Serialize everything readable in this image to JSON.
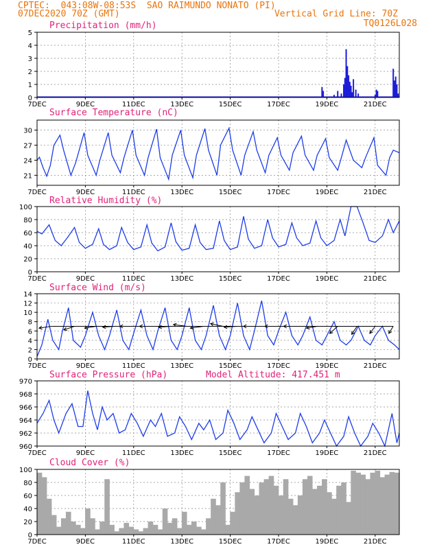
{
  "header": {
    "line1": "CPTEC:  043:08W-08:53S  SAO RAIMUNDO NONATO (PI)",
    "line2": "07DEC2020 70Z (GMT)",
    "grid_note": "Vertical Grid Line: 70Z",
    "code": "TQ0126L028"
  },
  "colors": {
    "header": "#e8740c",
    "title": "#e0217a",
    "line": "#1c3ce8",
    "bar": "#1c1cd8",
    "cloud": "#a9a9a9"
  },
  "chart_data": [
    {
      "type": "bar",
      "title": "Precipitation (mm/h)",
      "x_labels": [
        "7DEC",
        "9DEC",
        "11DEC",
        "13DEC",
        "15DEC",
        "17DEC",
        "19DEC",
        "21DEC"
      ],
      "xlim": [
        7,
        22
      ],
      "ylim": [
        0,
        5
      ],
      "yticks": [
        0,
        1,
        2,
        3,
        4,
        5
      ],
      "x": [
        18.8,
        18.85,
        19.3,
        19.45,
        19.6,
        19.7,
        19.75,
        19.8,
        19.85,
        19.9,
        19.95,
        20.0,
        20.05,
        20.1,
        20.2,
        20.3,
        21.0,
        21.05,
        21.1,
        21.75,
        21.8,
        21.85,
        21.9,
        21.95
      ],
      "values": [
        0.8,
        0.5,
        0.2,
        0.5,
        0.3,
        1.0,
        1.5,
        3.7,
        2.4,
        1.7,
        1.2,
        0.9,
        0.4,
        1.4,
        0.6,
        0.3,
        0.2,
        0.6,
        0.5,
        2.2,
        1.3,
        1.6,
        1.0,
        0.3
      ],
      "grid": true
    },
    {
      "type": "line",
      "title": "Surface Temperature (nC)",
      "x_labels": [
        "7DEC",
        "9DEC",
        "11DEC",
        "13DEC",
        "15DEC",
        "17DEC",
        "19DEC",
        "21DEC"
      ],
      "xlim": [
        7,
        22
      ],
      "ylim": [
        19,
        32
      ],
      "yticks": [
        21,
        24,
        27,
        30
      ],
      "series": [
        {
          "x": [
            7.0,
            7.1,
            7.25,
            7.4,
            7.55,
            7.7,
            7.95,
            8.1,
            8.4,
            8.6,
            8.95,
            9.1,
            9.45,
            9.6,
            9.95,
            10.1,
            10.45,
            10.6,
            10.95,
            11.1,
            11.45,
            11.6,
            11.95,
            12.1,
            12.45,
            12.6,
            12.95,
            13.1,
            13.45,
            13.6,
            13.95,
            14.1,
            14.45,
            14.6,
            14.95,
            15.1,
            15.45,
            15.6,
            15.95,
            16.1,
            16.45,
            16.6,
            16.95,
            17.1,
            17.45,
            17.6,
            17.95,
            18.1,
            18.45,
            18.6,
            18.95,
            19.1,
            19.45,
            19.6,
            19.8,
            20.1,
            20.45,
            20.6,
            20.95,
            21.1,
            21.45,
            21.6,
            21.75,
            22.0
          ],
          "values": [
            24.0,
            24.6,
            22.5,
            20.8,
            23.0,
            27.0,
            29.0,
            26.0,
            21.0,
            23.5,
            29.5,
            25.0,
            21.0,
            24.0,
            29.5,
            25.0,
            21.5,
            24.5,
            30.0,
            25.0,
            21.0,
            24.5,
            30.2,
            24.5,
            20.2,
            25.0,
            30.0,
            25.0,
            20.5,
            25.0,
            30.3,
            26.0,
            21.0,
            27.0,
            30.4,
            26.0,
            21.0,
            25.0,
            29.7,
            26.0,
            21.5,
            25.0,
            28.5,
            25.0,
            22.0,
            25.5,
            28.8,
            25.0,
            22.0,
            25.0,
            28.3,
            24.5,
            22.0,
            24.5,
            28.0,
            24.0,
            22.5,
            24.5,
            28.5,
            23.0,
            21.0,
            24.5,
            26.0,
            25.5
          ]
        }
      ],
      "grid": true
    },
    {
      "type": "line",
      "title": "Relative Humidity (%)",
      "x_labels": [
        "7DEC",
        "9DEC",
        "11DEC",
        "13DEC",
        "15DEC",
        "17DEC",
        "19DEC",
        "21DEC"
      ],
      "xlim": [
        7,
        22
      ],
      "ylim": [
        0,
        100
      ],
      "yticks": [
        0,
        20,
        40,
        60,
        80,
        100
      ],
      "series": [
        {
          "x": [
            7.0,
            7.2,
            7.5,
            7.75,
            8.0,
            8.25,
            8.55,
            8.75,
            9.0,
            9.3,
            9.55,
            9.75,
            10.0,
            10.3,
            10.5,
            10.75,
            11.0,
            11.3,
            11.55,
            11.75,
            12.0,
            12.3,
            12.55,
            12.75,
            13.0,
            13.3,
            13.55,
            13.75,
            14.0,
            14.3,
            14.55,
            14.75,
            15.0,
            15.3,
            15.55,
            15.75,
            16.0,
            16.3,
            16.55,
            16.75,
            17.0,
            17.3,
            17.55,
            17.75,
            18.0,
            18.3,
            18.55,
            18.75,
            19.0,
            19.3,
            19.55,
            19.75,
            20.0,
            20.25,
            20.5,
            20.75,
            21.0,
            21.3,
            21.55,
            21.75,
            22.0
          ],
          "values": [
            62,
            58,
            72,
            48,
            40,
            52,
            68,
            45,
            36,
            42,
            66,
            42,
            34,
            40,
            68,
            45,
            34,
            38,
            72,
            44,
            32,
            38,
            75,
            46,
            33,
            36,
            72,
            45,
            34,
            36,
            78,
            48,
            34,
            38,
            85,
            50,
            36,
            40,
            80,
            52,
            38,
            42,
            75,
            52,
            40,
            44,
            78,
            52,
            40,
            48,
            80,
            55,
            100,
            100,
            75,
            48,
            45,
            55,
            80,
            60,
            78
          ]
        }
      ],
      "grid": true
    },
    {
      "type": "line",
      "title": "Surface Wind (m/s)",
      "x_labels": [
        "7DEC",
        "9DEC",
        "11DEC",
        "13DEC",
        "15DEC",
        "17DEC",
        "19DEC",
        "21DEC"
      ],
      "xlim": [
        7,
        22
      ],
      "ylim": [
        0,
        14
      ],
      "yticks": [
        0,
        2,
        4,
        6,
        8,
        10,
        12,
        14
      ],
      "series": [
        {
          "x": [
            7.0,
            7.2,
            7.45,
            7.65,
            7.9,
            8.05,
            8.3,
            8.5,
            8.8,
            9.0,
            9.3,
            9.55,
            9.8,
            10.0,
            10.3,
            10.55,
            10.8,
            11.0,
            11.3,
            11.55,
            11.8,
            12.0,
            12.3,
            12.55,
            12.8,
            13.0,
            13.3,
            13.55,
            13.8,
            14.0,
            14.3,
            14.55,
            14.8,
            15.0,
            15.3,
            15.55,
            15.8,
            16.0,
            16.3,
            16.55,
            16.8,
            17.0,
            17.3,
            17.55,
            17.8,
            18.0,
            18.3,
            18.55,
            18.8,
            19.0,
            19.3,
            19.55,
            19.8,
            20.0,
            20.3,
            20.55,
            20.8,
            21.0,
            21.3,
            21.55,
            21.8,
            22.0
          ],
          "values": [
            0.5,
            3,
            8.5,
            4,
            2,
            6,
            11,
            4,
            2.5,
            5,
            10,
            5,
            2,
            5,
            10.5,
            4,
            2,
            5.5,
            10.5,
            5,
            2,
            6,
            11,
            4,
            2,
            5,
            11,
            4,
            2,
            5,
            11.5,
            5,
            2,
            5,
            12,
            5,
            2,
            6,
            12.5,
            5,
            3,
            6,
            10,
            5,
            3,
            5,
            9,
            4,
            3,
            5,
            8,
            4,
            3,
            4,
            7,
            4,
            3,
            5,
            7,
            4,
            3,
            2
          ]
        }
      ],
      "wind_vectors": {
        "y_level": 7,
        "x": [
          7.6,
          8.55,
          9.45,
          10.2,
          10.95,
          11.8,
          12.55,
          13.2,
          13.9,
          14.7,
          15.3,
          16.1,
          16.95,
          17.8,
          18.6,
          19.45,
          20.25,
          21.0,
          21.75
        ],
        "u": [
          -1.4,
          -1.2,
          -1.3,
          -1.3,
          -1.4,
          -1.5,
          -1.4,
          -1.5,
          -1.5,
          -1.4,
          -1.5,
          -1.5,
          -1.4,
          -1.6,
          -1.2,
          -0.9,
          -0.6,
          -0.6,
          -0.5
        ],
        "v": [
          -0.2,
          -0.4,
          -0.2,
          -0.1,
          0.0,
          0.0,
          -0.1,
          0.2,
          -0.2,
          0.3,
          -0.1,
          0.0,
          0.0,
          0.0,
          -0.2,
          -0.8,
          -0.9,
          -0.8,
          -0.8
        ]
      },
      "grid": true
    },
    {
      "type": "line",
      "title": "Surface Pressure (hPa)",
      "annotation": "Model Altitude: 417.451 m",
      "x_labels": [
        "7DEC",
        "9DEC",
        "11DEC",
        "13DEC",
        "15DEC",
        "17DEC",
        "19DEC",
        "21DEC"
      ],
      "xlim": [
        7,
        22
      ],
      "ylim": [
        960,
        970
      ],
      "yticks": [
        960,
        962,
        964,
        966,
        968,
        970
      ],
      "series": [
        {
          "x": [
            7.0,
            7.25,
            7.5,
            7.7,
            7.9,
            8.2,
            8.45,
            8.7,
            8.9,
            9.1,
            9.3,
            9.5,
            9.7,
            9.9,
            10.15,
            10.4,
            10.65,
            10.9,
            11.15,
            11.4,
            11.7,
            11.9,
            12.15,
            12.4,
            12.7,
            12.9,
            13.15,
            13.4,
            13.7,
            13.9,
            14.15,
            14.4,
            14.7,
            14.9,
            15.15,
            15.4,
            15.7,
            15.9,
            16.15,
            16.4,
            16.7,
            16.9,
            17.15,
            17.4,
            17.7,
            17.9,
            18.15,
            18.4,
            18.7,
            18.9,
            19.15,
            19.4,
            19.7,
            19.9,
            20.15,
            20.4,
            20.7,
            20.9,
            21.15,
            21.4,
            21.7,
            21.9,
            22.0
          ],
          "values": [
            963.5,
            965,
            967,
            964,
            962,
            965,
            966.5,
            963,
            963,
            968.5,
            965,
            962.5,
            966,
            964,
            965,
            962,
            962.5,
            965,
            963.5,
            961.5,
            964,
            963,
            965,
            961.5,
            962,
            964.5,
            963,
            961,
            963.5,
            962.5,
            964,
            961,
            962,
            965.5,
            963.5,
            961,
            962.5,
            964.5,
            962.5,
            960.5,
            962,
            965,
            963,
            961,
            962,
            965,
            963,
            960.5,
            962,
            964,
            962,
            960,
            961.5,
            964.5,
            962,
            960,
            961.5,
            963.5,
            962,
            960,
            965,
            960.5,
            962
          ]
        }
      ],
      "grid": true
    },
    {
      "type": "bar",
      "title": "Cloud Cover (%)",
      "x_labels": [
        "7DEC",
        "9DEC",
        "11DEC",
        "13DEC",
        "15DEC",
        "17DEC",
        "19DEC",
        "21DEC"
      ],
      "xlim": [
        7,
        22
      ],
      "ylim": [
        0,
        100
      ],
      "yticks": [
        0,
        20,
        40,
        60,
        80,
        100
      ],
      "x": [
        7.1,
        7.3,
        7.5,
        7.7,
        7.9,
        8.1,
        8.3,
        8.5,
        8.7,
        8.9,
        9.1,
        9.3,
        9.5,
        9.7,
        9.9,
        10.1,
        10.3,
        10.5,
        10.7,
        10.9,
        11.1,
        11.3,
        11.5,
        11.7,
        11.9,
        12.1,
        12.3,
        12.5,
        12.7,
        12.9,
        13.1,
        13.3,
        13.5,
        13.7,
        13.9,
        14.1,
        14.3,
        14.5,
        14.7,
        14.9,
        15.1,
        15.3,
        15.5,
        15.7,
        15.9,
        16.1,
        16.3,
        16.5,
        16.7,
        16.9,
        17.1,
        17.3,
        17.5,
        17.7,
        17.9,
        18.1,
        18.3,
        18.5,
        18.7,
        18.9,
        19.1,
        19.3,
        19.5,
        19.7,
        19.9,
        20.1,
        20.3,
        20.5,
        20.7,
        20.9,
        21.1,
        21.3,
        21.5,
        21.7,
        21.9
      ],
      "values": [
        95,
        88,
        55,
        30,
        12,
        25,
        35,
        20,
        15,
        10,
        40,
        25,
        8,
        20,
        85,
        15,
        5,
        10,
        18,
        12,
        8,
        5,
        10,
        20,
        15,
        8,
        40,
        18,
        25,
        10,
        35,
        15,
        20,
        12,
        8,
        25,
        55,
        45,
        80,
        15,
        35,
        65,
        80,
        90,
        70,
        60,
        80,
        85,
        90,
        75,
        60,
        85,
        55,
        45,
        60,
        85,
        90,
        70,
        75,
        85,
        65,
        55,
        75,
        80,
        50,
        98,
        95,
        92,
        85,
        95,
        98,
        88,
        92,
        96,
        95
      ],
      "grid": true
    }
  ]
}
